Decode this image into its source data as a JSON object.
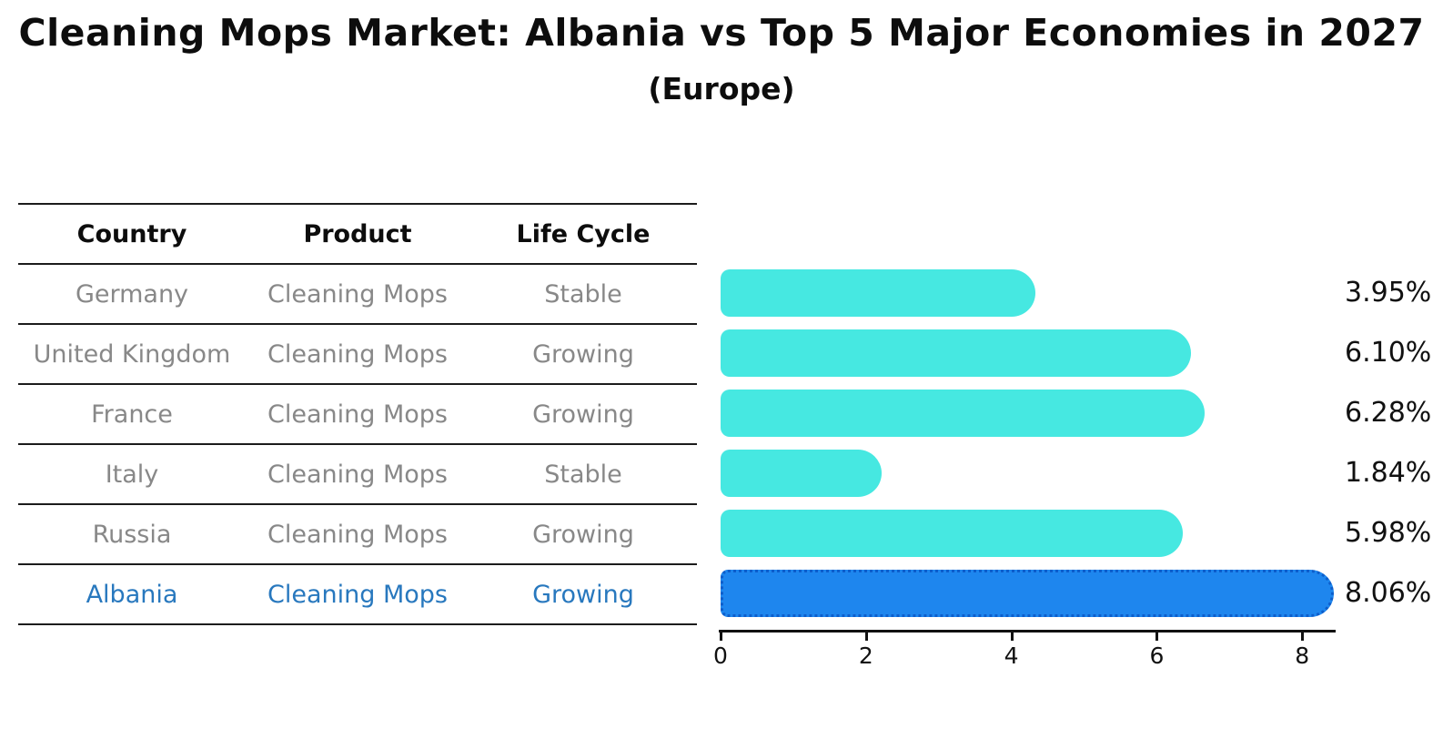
{
  "title": "Cleaning Mops Market: Albania vs Top 5 Major Economies in 2027",
  "subtitle": "(Europe)",
  "table": {
    "headers": [
      "Country",
      "Product",
      "Life Cycle"
    ],
    "rows": [
      {
        "country": "Germany",
        "product": "Cleaning Mops",
        "life_cycle": "Stable",
        "highlight": false
      },
      {
        "country": "United Kingdom",
        "product": "Cleaning Mops",
        "life_cycle": "Growing",
        "highlight": false
      },
      {
        "country": "France",
        "product": "Cleaning Mops",
        "life_cycle": "Growing",
        "highlight": false
      },
      {
        "country": "Italy",
        "product": "Cleaning Mops",
        "life_cycle": "Stable",
        "highlight": false
      },
      {
        "country": "Russia",
        "product": "Cleaning Mops",
        "life_cycle": "Growing",
        "highlight": false
      },
      {
        "country": "Albania",
        "product": "Cleaning Mops",
        "life_cycle": "Growing",
        "highlight": true
      }
    ]
  },
  "chart_data": {
    "type": "bar",
    "orientation": "horizontal",
    "title": "Cleaning Mops Market: Albania vs Top 5 Major Economies in 2027 (Europe)",
    "categories": [
      "Germany",
      "United Kingdom",
      "France",
      "Italy",
      "Russia",
      "Albania"
    ],
    "values": [
      3.95,
      6.1,
      6.28,
      1.84,
      5.98,
      8.06
    ],
    "value_labels": [
      "3.95%",
      "6.10%",
      "6.28%",
      "1.84%",
      "5.98%",
      "8.06%"
    ],
    "x_ticks": [
      0,
      2,
      4,
      6,
      8
    ],
    "xlim": [
      0,
      8.47
    ],
    "xlabel": "",
    "ylabel": "",
    "grid": false,
    "legend": false,
    "highlight_index": 5,
    "bar_color": "#46e8e1",
    "highlight_bar_color": "#1e86ee",
    "highlight_border_color": "#0d5ecb",
    "text_color": "#888888",
    "highlight_text_color": "#2878be"
  }
}
